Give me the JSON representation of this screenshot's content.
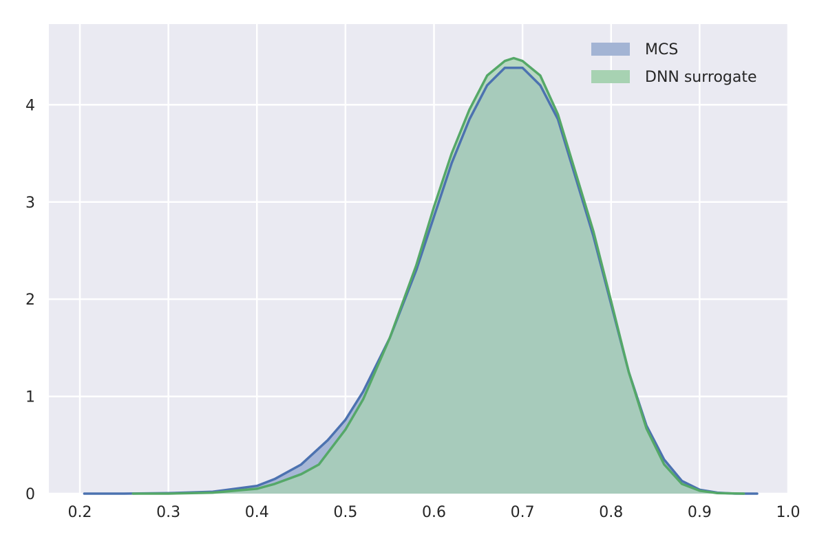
{
  "chart_data": {
    "type": "area",
    "title": "",
    "xlabel": "",
    "ylabel": "",
    "xlim": [
      0.165,
      1.0
    ],
    "ylim": [
      0,
      4.83
    ],
    "grid": true,
    "legend_position": "top-right",
    "x_ticks": [
      "0.2",
      "0.3",
      "0.4",
      "0.5",
      "0.6",
      "0.7",
      "0.8",
      "0.9",
      "1.0"
    ],
    "y_ticks": [
      "0",
      "1",
      "2",
      "3",
      "4"
    ],
    "colors": {
      "background": "#eaeaf2",
      "grid": "#ffffff",
      "mcs_line": "#4c72b0",
      "mcs_fill": "#a3b4d4",
      "dnn_line": "#55a868",
      "dnn_fill": "#a7d2b2",
      "overlap": "#8ab3aa"
    },
    "series": [
      {
        "name": "MCS",
        "x": [
          0.205,
          0.25,
          0.3,
          0.35,
          0.4,
          0.42,
          0.45,
          0.48,
          0.5,
          0.52,
          0.55,
          0.58,
          0.6,
          0.62,
          0.64,
          0.66,
          0.68,
          0.7,
          0.72,
          0.74,
          0.76,
          0.78,
          0.8,
          0.82,
          0.84,
          0.86,
          0.88,
          0.9,
          0.92,
          0.94,
          0.965
        ],
        "y": [
          0.0,
          0.0,
          0.005,
          0.02,
          0.08,
          0.15,
          0.3,
          0.55,
          0.76,
          1.05,
          1.6,
          2.3,
          2.85,
          3.4,
          3.85,
          4.2,
          4.38,
          4.38,
          4.2,
          3.85,
          3.25,
          2.65,
          1.95,
          1.25,
          0.7,
          0.35,
          0.13,
          0.04,
          0.01,
          0.0,
          0.0
        ]
      },
      {
        "name": "DNN surrogate",
        "x": [
          0.26,
          0.3,
          0.35,
          0.4,
          0.42,
          0.45,
          0.47,
          0.5,
          0.52,
          0.55,
          0.58,
          0.6,
          0.62,
          0.64,
          0.66,
          0.68,
          0.69,
          0.7,
          0.72,
          0.74,
          0.76,
          0.78,
          0.8,
          0.82,
          0.84,
          0.86,
          0.88,
          0.9,
          0.92,
          0.95
        ],
        "y": [
          0.0,
          0.0,
          0.01,
          0.05,
          0.1,
          0.2,
          0.3,
          0.66,
          0.97,
          1.6,
          2.35,
          2.95,
          3.5,
          3.95,
          4.3,
          4.45,
          4.48,
          4.45,
          4.3,
          3.9,
          3.3,
          2.7,
          1.98,
          1.25,
          0.67,
          0.3,
          0.1,
          0.03,
          0.005,
          0.0
        ]
      }
    ]
  }
}
